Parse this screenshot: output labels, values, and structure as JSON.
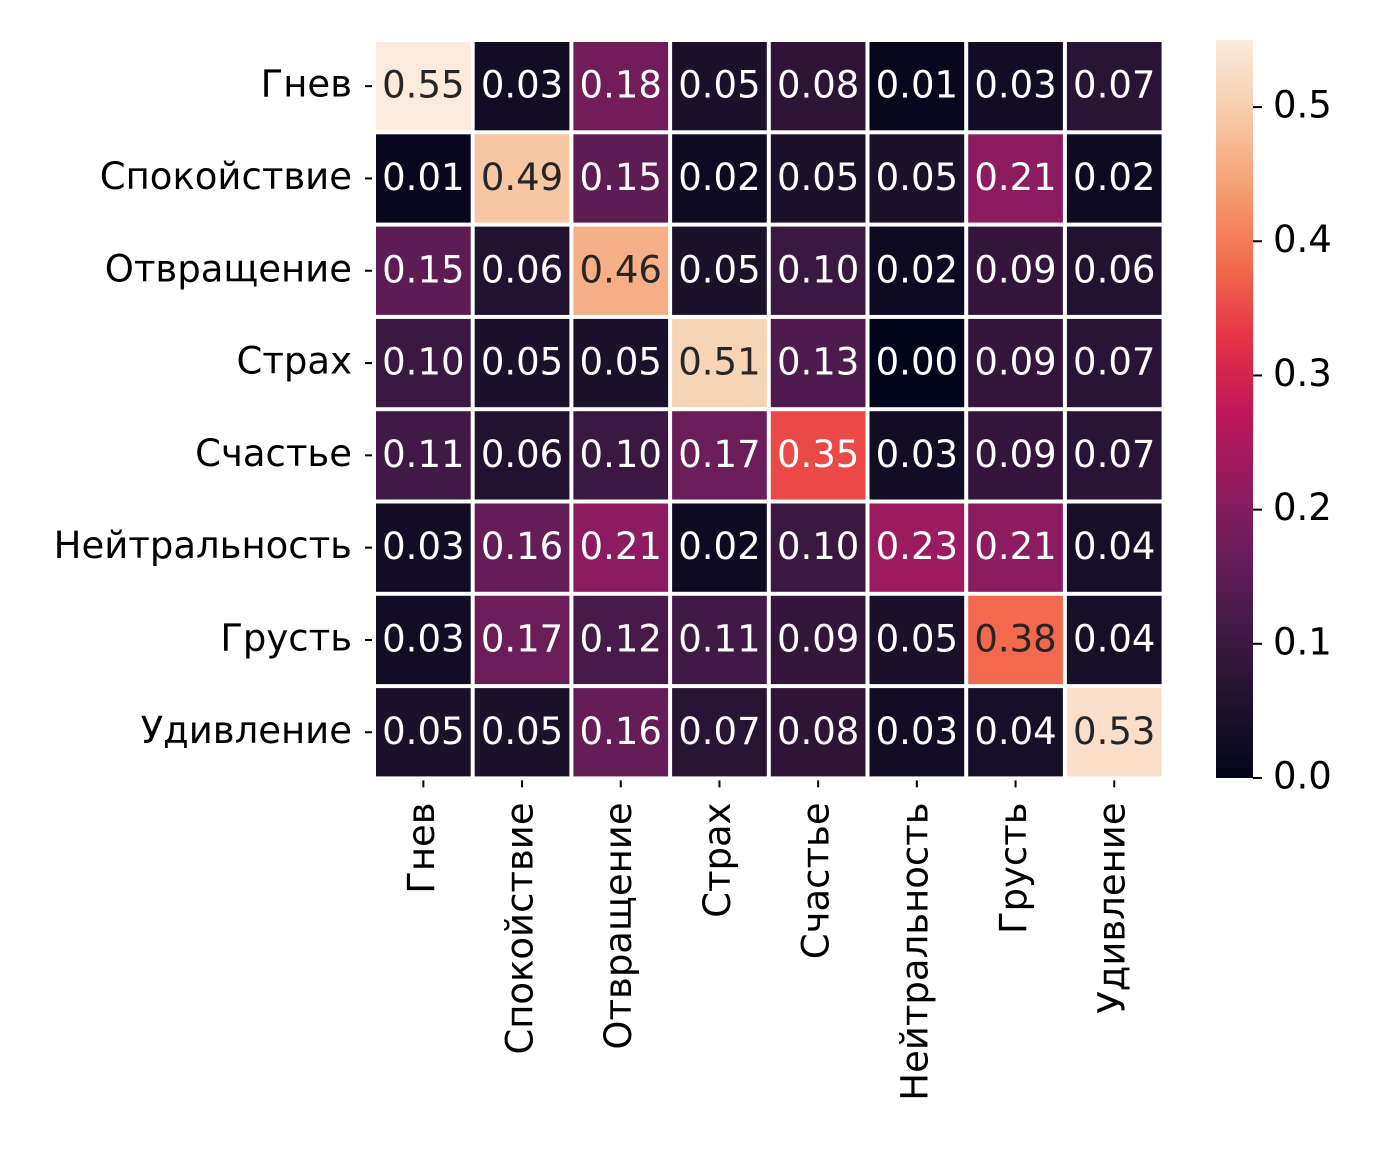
{
  "chart_data": {
    "type": "heatmap",
    "title": "",
    "xlabel": "",
    "ylabel": "",
    "rows": [
      "Гнев",
      "Спокойствие",
      "Отвращение",
      "Страх",
      "Счастье",
      "Нейтральность",
      "Грусть",
      "Удивление"
    ],
    "columns": [
      "Гнев",
      "Спокойствие",
      "Отвращение",
      "Страх",
      "Счастье",
      "Нейтральность",
      "Грусть",
      "Удивление"
    ],
    "values": [
      [
        0.55,
        0.03,
        0.18,
        0.05,
        0.08,
        0.01,
        0.03,
        0.07
      ],
      [
        0.01,
        0.49,
        0.15,
        0.02,
        0.05,
        0.05,
        0.21,
        0.02
      ],
      [
        0.15,
        0.06,
        0.46,
        0.05,
        0.1,
        0.02,
        0.09,
        0.06
      ],
      [
        0.1,
        0.05,
        0.05,
        0.51,
        0.13,
        0.0,
        0.09,
        0.07
      ],
      [
        0.11,
        0.06,
        0.1,
        0.17,
        0.35,
        0.03,
        0.09,
        0.07
      ],
      [
        0.03,
        0.16,
        0.21,
        0.02,
        0.1,
        0.23,
        0.21,
        0.04
      ],
      [
        0.03,
        0.17,
        0.12,
        0.11,
        0.09,
        0.05,
        0.38,
        0.04
      ],
      [
        0.05,
        0.05,
        0.16,
        0.07,
        0.08,
        0.03,
        0.04,
        0.53
      ]
    ],
    "value_format": "0.00",
    "colormap": "rocket",
    "colorbar": {
      "min": 0.0,
      "max": 0.55,
      "ticks": [
        0.0,
        0.1,
        0.2,
        0.3,
        0.4,
        0.5
      ],
      "tick_labels": [
        "0.0",
        "0.1",
        "0.2",
        "0.3",
        "0.4",
        "0.5"
      ]
    },
    "cell_separator_color": "#ffffff",
    "legend": "right"
  }
}
